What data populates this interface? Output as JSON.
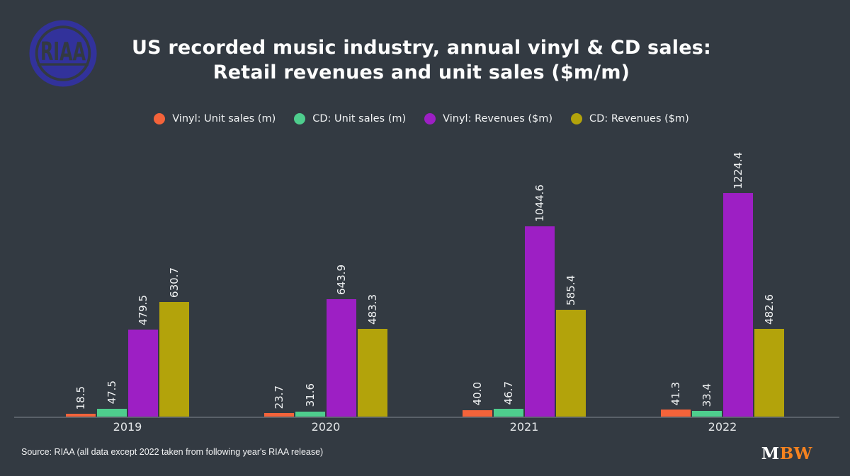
{
  "header": {
    "logo_text": "RIAA",
    "title_line1": "US recorded music industry, annual vinyl & CD sales:",
    "title_line2": "Retail revenues and unit sales ($m/m)"
  },
  "chart_data": {
    "type": "bar",
    "title": "US recorded music industry, annual vinyl & CD sales: Retail revenues and unit sales ($m/m)",
    "categories": [
      "2019",
      "2020",
      "2021",
      "2022"
    ],
    "series": [
      {
        "name": "Vinyl: Unit sales (m)",
        "color": "#F4633A",
        "values": [
          18.5,
          23.7,
          40.0,
          41.3
        ]
      },
      {
        "name": "CD: Unit sales (m)",
        "color": "#4ECD8D",
        "values": [
          47.5,
          31.6,
          46.7,
          33.4
        ]
      },
      {
        "name": "Vinyl: Revenues ($m)",
        "color": "#9D1FC4",
        "values": [
          479.5,
          643.9,
          1044.6,
          1224.4
        ]
      },
      {
        "name": "CD: Revenues ($m)",
        "color": "#B3A30B",
        "values": [
          630.7,
          483.3,
          585.4,
          482.6
        ]
      }
    ],
    "value_label_format": "one-decimal",
    "value_label_rotation": "vertical",
    "legend_position": "top-center",
    "grid": "off",
    "y_axis": "hidden",
    "background": "#333A42",
    "axis_line_color": "#5A6169"
  },
  "footer": {
    "source": "Source: RIAA (all data except 2022 taken from following year's RIAA release)",
    "brand_m": "M",
    "brand_bw": "BW"
  }
}
